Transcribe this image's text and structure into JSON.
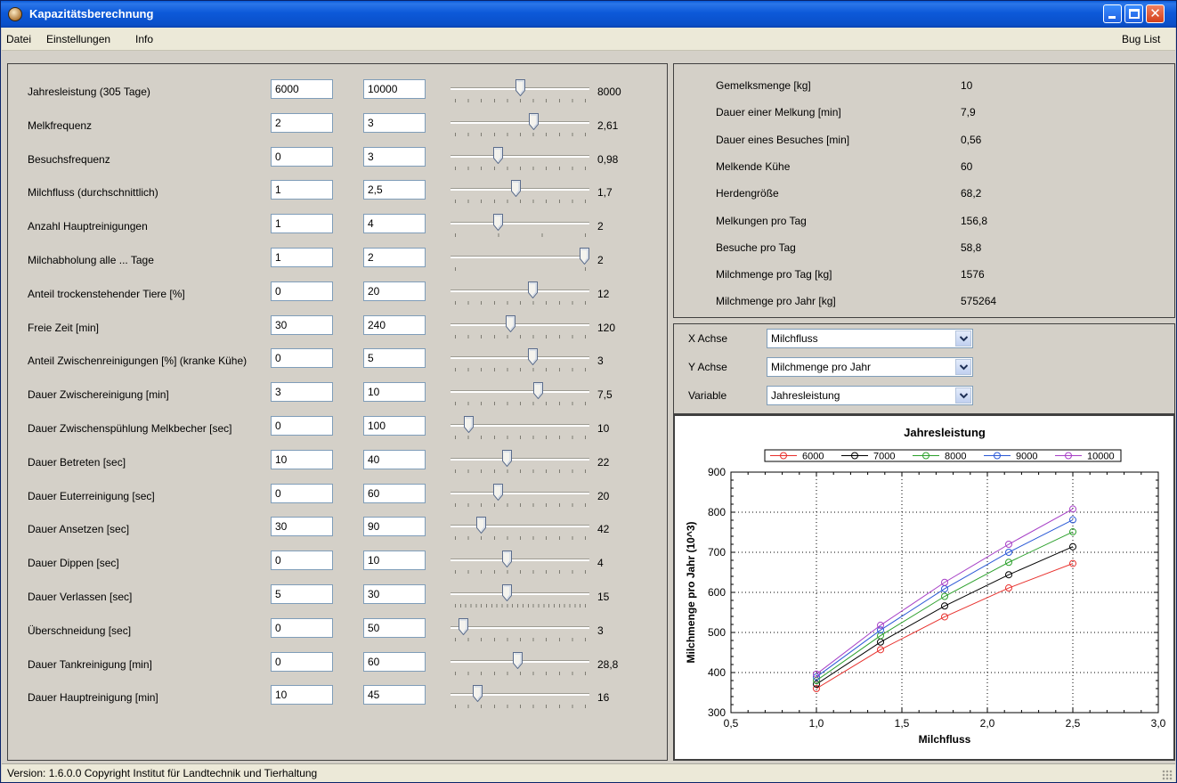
{
  "window": {
    "title": "Kapazitätsberechnung"
  },
  "menu": {
    "items": [
      "Datei",
      "Einstellungen",
      "Info"
    ],
    "right": "Bug List"
  },
  "params": [
    {
      "label": "Jahresleistung (305 Tage)",
      "min": "6000",
      "max": "10000",
      "value": "8000",
      "pos": 0.5,
      "ticks": 10
    },
    {
      "label": "Melkfrequenz",
      "min": "2",
      "max": "3",
      "value": "2,61",
      "pos": 0.61,
      "ticks": 10
    },
    {
      "label": "Besuchsfrequenz",
      "min": "0",
      "max": "3",
      "value": "0,98",
      "pos": 0.33,
      "ticks": 10
    },
    {
      "label": "Milchfluss (durchschnittlich)",
      "min": "1",
      "max": "2,5",
      "value": "1,7",
      "pos": 0.47,
      "ticks": 10
    },
    {
      "label": "Anzahl Hauptreinigungen",
      "min": "1",
      "max": "4",
      "value": "2",
      "pos": 0.33,
      "ticks": 3
    },
    {
      "label": "Milchabholung alle ... Tage",
      "min": "1",
      "max": "2",
      "value": "2",
      "pos": 1.0,
      "ticks": 1
    },
    {
      "label": "Anteil trockenstehender Tiere [%]",
      "min": "0",
      "max": "20",
      "value": "12",
      "pos": 0.6,
      "ticks": 10
    },
    {
      "label": "Freie Zeit [min]",
      "min": "30",
      "max": "240",
      "value": "120",
      "pos": 0.43,
      "ticks": 10
    },
    {
      "label": "Anteil Zwischenreinigungen [%] (kranke Kühe)",
      "min": "0",
      "max": "5",
      "value": "3",
      "pos": 0.6,
      "ticks": 10
    },
    {
      "label": "Dauer Zwischereinigung [min]",
      "min": "3",
      "max": "10",
      "value": "7,5",
      "pos": 0.64,
      "ticks": 10
    },
    {
      "label": "Dauer Zwischenspühlung Melkbecher [sec]",
      "min": "0",
      "max": "100",
      "value": "10",
      "pos": 0.1,
      "ticks": 10
    },
    {
      "label": "Dauer Betreten [sec]",
      "min": "10",
      "max": "40",
      "value": "22",
      "pos": 0.4,
      "ticks": 10
    },
    {
      "label": "Dauer Euterreinigung [sec]",
      "min": "0",
      "max": "60",
      "value": "20",
      "pos": 0.33,
      "ticks": 10
    },
    {
      "label": "Dauer Ansetzen [sec]",
      "min": "30",
      "max": "90",
      "value": "42",
      "pos": 0.2,
      "ticks": 10
    },
    {
      "label": "Dauer Dippen [sec]",
      "min": "0",
      "max": "10",
      "value": "4",
      "pos": 0.4,
      "ticks": 10
    },
    {
      "label": "Dauer Verlassen [sec]",
      "min": "5",
      "max": "30",
      "value": "15",
      "pos": 0.4,
      "ticks": 25
    },
    {
      "label": "Überschneidung [sec]",
      "min": "0",
      "max": "50",
      "value": "3",
      "pos": 0.06,
      "ticks": 10
    },
    {
      "label": "Dauer Tankreinigung [min]",
      "min": "0",
      "max": "60",
      "value": "28,8",
      "pos": 0.48,
      "ticks": 10
    },
    {
      "label": "Dauer Hauptreinigung [min]",
      "min": "10",
      "max": "45",
      "value": "16",
      "pos": 0.17,
      "ticks": 10
    }
  ],
  "results": [
    {
      "label": "Gemelksmenge [kg]",
      "value": "10"
    },
    {
      "label": "Dauer einer Melkung [min]",
      "value": "7,9"
    },
    {
      "label": "Dauer eines Besuches [min]",
      "value": "0,56"
    },
    {
      "label": "Melkende Kühe",
      "value": "60"
    },
    {
      "label": "Herdengröße",
      "value": "68,2"
    },
    {
      "label": "Melkungen pro Tag",
      "value": "156,8"
    },
    {
      "label": "Besuche pro Tag",
      "value": "58,8"
    },
    {
      "label": "Milchmenge pro Tag [kg]",
      "value": "1576"
    },
    {
      "label": "Milchmenge pro Jahr [kg]",
      "value": "575264"
    }
  ],
  "axes": [
    {
      "label": "X Achse",
      "value": "Milchfluss"
    },
    {
      "label": "Y Achse",
      "value": "Milchmenge pro Jahr"
    },
    {
      "label": "Variable",
      "value": "Jahresleistung"
    }
  ],
  "chart_data": {
    "type": "line",
    "title": "Jahresleistung",
    "xlabel": "Milchfluss",
    "ylabel": "Milchmenge pro Jahr (10^3)",
    "xlim": [
      0.5,
      3.0
    ],
    "ylim": [
      300,
      900
    ],
    "xticks": [
      "0,5",
      "1,0",
      "1,5",
      "2,0",
      "2,5",
      "3,0"
    ],
    "yticks": [
      "300",
      "400",
      "500",
      "600",
      "700",
      "800",
      "900"
    ],
    "grid": true,
    "legend": "top",
    "x": [
      1.0,
      1.375,
      1.75,
      2.125,
      2.5
    ],
    "series": [
      {
        "name": "6000",
        "color": "#e8302c",
        "values": [
          360,
          457,
          539,
          611,
          672
        ]
      },
      {
        "name": "7000",
        "color": "#000000",
        "values": [
          371,
          476,
          566,
          644,
          714
        ]
      },
      {
        "name": "8000",
        "color": "#2ca02c",
        "values": [
          380,
          492,
          590,
          675,
          751
        ]
      },
      {
        "name": "9000",
        "color": "#2b59d6",
        "values": [
          389,
          506,
          609,
          700,
          781
        ]
      },
      {
        "name": "10000",
        "color": "#a63fc6",
        "values": [
          396,
          518,
          625,
          720,
          808
        ]
      }
    ]
  },
  "status": {
    "text": "Version: 1.6.0.0  Copyright Institut für Landtechnik und Tierhaltung"
  }
}
